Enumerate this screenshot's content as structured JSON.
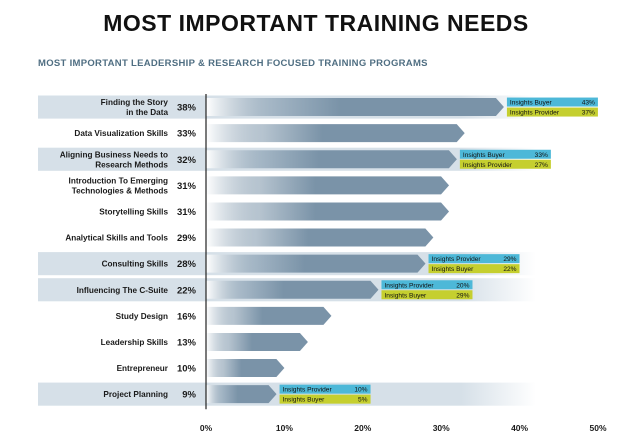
{
  "title": "MOST IMPORTANT TRAINING NEEDS",
  "subtitle": "MOST IMPORTANT LEADERSHIP & RESEARCH FOCUSED TRAINING PROGRAMS",
  "colors": {
    "bar": "#7a93a8",
    "bar_fade": "#ffffff",
    "row_band": "#d6e0e8",
    "buyer_box": "#4db8d8",
    "provider_box": "#c5cf2f",
    "axis": "#222222",
    "text": "#1a1a1a"
  },
  "chart_data": {
    "type": "bar",
    "orientation": "horizontal",
    "title": "MOST IMPORTANT TRAINING NEEDS",
    "subtitle": "MOST IMPORTANT LEADERSHIP & RESEARCH FOCUSED TRAINING PROGRAMS",
    "xlim": [
      0,
      50
    ],
    "x_ticks": [
      "0%",
      "10%",
      "20%",
      "30%",
      "40%",
      "50%"
    ],
    "grid": false,
    "categories": [
      "Finding the Story\nin the Data",
      "Data Visualization Skills",
      "Aligning Business Needs to\nResearch Methods",
      "Introduction To Emerging\nTechnologies & Methods",
      "Storytelling Skills",
      "Analytical Skills and Tools",
      "Consulting Skills",
      "Influencing The C-Suite",
      "Study Design",
      "Leadership Skills",
      "Entrepreneur",
      "Project Planning"
    ],
    "values": [
      38,
      33,
      32,
      31,
      31,
      29,
      28,
      22,
      16,
      13,
      10,
      9
    ],
    "value_labels": [
      "38%",
      "33%",
      "32%",
      "31%",
      "31%",
      "29%",
      "28%",
      "22%",
      "16%",
      "13%",
      "10%",
      "9%"
    ],
    "banded_rows": [
      0,
      2,
      6,
      7,
      11
    ],
    "callouts": [
      {
        "row": 0,
        "first": {
          "label": "Insights Buyer",
          "value": "43%",
          "kind": "buyer"
        },
        "second": {
          "label": "Insights Provider",
          "value": "37%",
          "kind": "provider"
        }
      },
      {
        "row": 2,
        "first": {
          "label": "Insights Buyer",
          "value": "33%",
          "kind": "buyer"
        },
        "second": {
          "label": "Insights Provider",
          "value": "27%",
          "kind": "provider"
        }
      },
      {
        "row": 6,
        "first": {
          "label": "Insights Provider",
          "value": "29%",
          "kind": "buyer"
        },
        "second": {
          "label": "Insights Buyer",
          "value": "22%",
          "kind": "provider"
        }
      },
      {
        "row": 7,
        "first": {
          "label": "Insights Provider",
          "value": "20%",
          "kind": "buyer"
        },
        "second": {
          "label": "Insights Buyer",
          "value": "29%",
          "kind": "provider"
        }
      },
      {
        "row": 11,
        "first": {
          "label": "Insights Provider",
          "value": "10%",
          "kind": "buyer"
        },
        "second": {
          "label": "Insights Buyer",
          "value": "5%",
          "kind": "provider"
        }
      }
    ]
  }
}
